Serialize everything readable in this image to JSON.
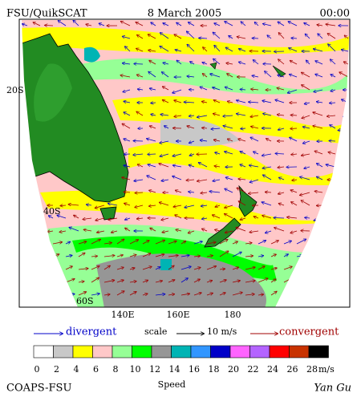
{
  "header": {
    "left": "FSU/QuikSCAT",
    "center": "8 March 2005",
    "right": "00:00"
  },
  "map": {
    "lat_labels": [
      "20S",
      "40S",
      "60S"
    ],
    "lon_labels": [
      "140E",
      "160E",
      "180"
    ]
  },
  "legend": {
    "divergent": "divergent",
    "scale": "scale",
    "scale_value": "10 m/s",
    "convergent": "convergent"
  },
  "colorbar": {
    "colors": [
      "#ffffff",
      "#c8c8c8",
      "#ffff00",
      "#ffc8c8",
      "#96ff96",
      "#00ff00",
      "#969696",
      "#00b4b4",
      "#3296ff",
      "#0000c8",
      "#ff64ff",
      "#b464ff",
      "#ff0000",
      "#c83200",
      "#000000"
    ],
    "ticks": [
      "0",
      "2",
      "4",
      "6",
      "8",
      "10",
      "12",
      "14",
      "16",
      "18",
      "20",
      "22",
      "24",
      "26",
      "28"
    ],
    "unit": "m/s",
    "label": "Speed"
  },
  "footer": {
    "left": "COAPS-FSU",
    "right": "Yan Gu"
  }
}
